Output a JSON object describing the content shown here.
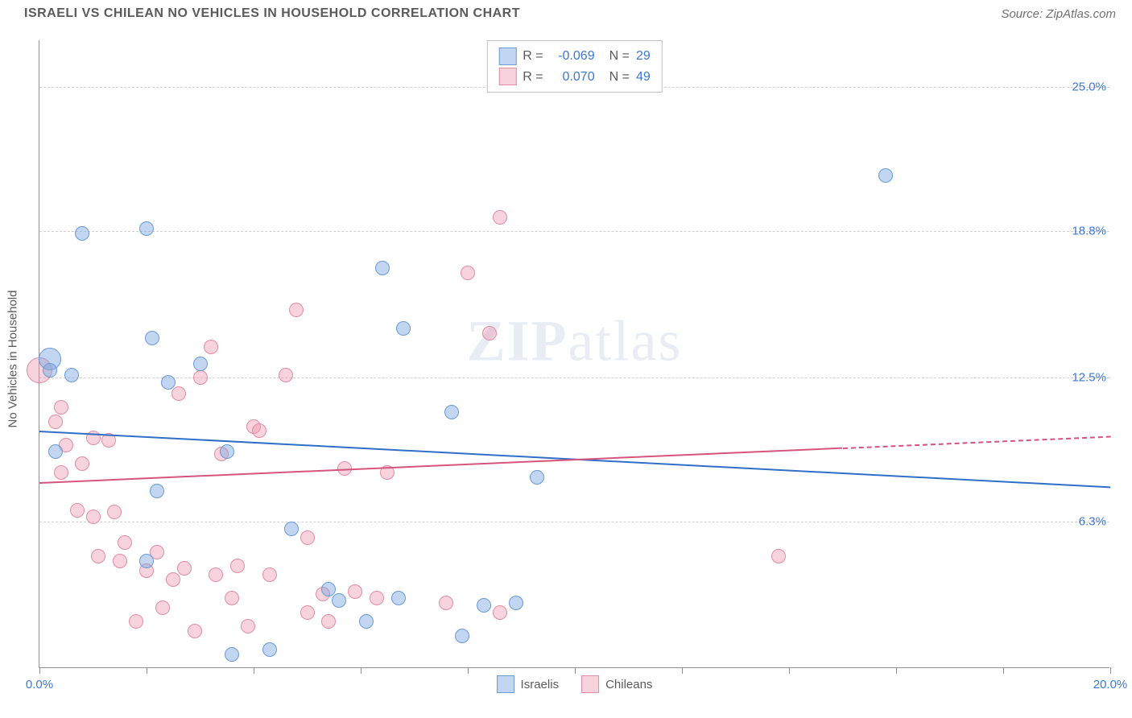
{
  "header": {
    "title": "ISRAELI VS CHILEAN NO VEHICLES IN HOUSEHOLD CORRELATION CHART",
    "source": "Source: ZipAtlas.com"
  },
  "chart": {
    "type": "scatter",
    "ylabel": "No Vehicles in Household",
    "watermark": "ZIPatlas",
    "background_color": "#ffffff",
    "grid_color": "#d0d0d0",
    "axis_color": "#909090",
    "text_color": "#5a5a5a",
    "value_color": "#3b78d8",
    "xlim": [
      0,
      20
    ],
    "ylim": [
      0,
      27
    ],
    "xticks": [
      0,
      2,
      4,
      6,
      8,
      10,
      12,
      14,
      16,
      18,
      20
    ],
    "xticks_labeled": [
      {
        "pos": 0,
        "label": "0.0%"
      },
      {
        "pos": 20,
        "label": "20.0%"
      }
    ],
    "yticks": [
      {
        "pos": 6.3,
        "label": "6.3%"
      },
      {
        "pos": 12.5,
        "label": "12.5%"
      },
      {
        "pos": 18.8,
        "label": "18.8%"
      },
      {
        "pos": 25.0,
        "label": "25.0%"
      }
    ],
    "series": [
      {
        "name": "Israelis",
        "fill_color": "rgba(120,165,225,0.45)",
        "stroke_color": "#6a9ad4",
        "line_color": "#2f6fc9",
        "R": "-0.069",
        "N": "29",
        "regression": {
          "x1": 0,
          "y1": 10.2,
          "x2": 20,
          "y2": 7.8,
          "dash_from_x": null
        },
        "points": [
          {
            "x": 0.2,
            "y": 13.3,
            "r": 14
          },
          {
            "x": 0.2,
            "y": 12.8,
            "r": 9
          },
          {
            "x": 0.8,
            "y": 18.7,
            "r": 9
          },
          {
            "x": 0.6,
            "y": 12.6,
            "r": 9
          },
          {
            "x": 0.3,
            "y": 9.3,
            "r": 9
          },
          {
            "x": 2.0,
            "y": 18.9,
            "r": 9
          },
          {
            "x": 2.1,
            "y": 14.2,
            "r": 9
          },
          {
            "x": 2.4,
            "y": 12.3,
            "r": 9
          },
          {
            "x": 2.2,
            "y": 7.6,
            "r": 9
          },
          {
            "x": 2.0,
            "y": 4.6,
            "r": 9
          },
          {
            "x": 3.0,
            "y": 13.1,
            "r": 9
          },
          {
            "x": 3.5,
            "y": 9.3,
            "r": 9
          },
          {
            "x": 3.6,
            "y": 0.6,
            "r": 9
          },
          {
            "x": 4.3,
            "y": 0.8,
            "r": 9
          },
          {
            "x": 4.7,
            "y": 6.0,
            "r": 9
          },
          {
            "x": 5.4,
            "y": 3.4,
            "r": 9
          },
          {
            "x": 5.6,
            "y": 2.9,
            "r": 9
          },
          {
            "x": 6.1,
            "y": 2.0,
            "r": 9
          },
          {
            "x": 6.4,
            "y": 17.2,
            "r": 9
          },
          {
            "x": 6.7,
            "y": 3.0,
            "r": 9
          },
          {
            "x": 6.8,
            "y": 14.6,
            "r": 9
          },
          {
            "x": 7.7,
            "y": 11.0,
            "r": 9
          },
          {
            "x": 7.9,
            "y": 1.4,
            "r": 9
          },
          {
            "x": 8.3,
            "y": 2.7,
            "r": 9
          },
          {
            "x": 8.9,
            "y": 2.8,
            "r": 9
          },
          {
            "x": 9.3,
            "y": 8.2,
            "r": 9
          },
          {
            "x": 15.8,
            "y": 21.2,
            "r": 9
          }
        ]
      },
      {
        "name": "Chileans",
        "fill_color": "rgba(235,145,170,0.40)",
        "stroke_color": "#e28ca4",
        "line_color": "#d6547c",
        "R": "0.070",
        "N": "49",
        "regression": {
          "x1": 0,
          "y1": 8.0,
          "x2": 20,
          "y2": 10.0,
          "dash_from_x": 15
        },
        "points": [
          {
            "x": 0.0,
            "y": 12.8,
            "r": 16
          },
          {
            "x": 0.3,
            "y": 10.6,
            "r": 9
          },
          {
            "x": 0.4,
            "y": 11.2,
            "r": 9
          },
          {
            "x": 0.4,
            "y": 8.4,
            "r": 9
          },
          {
            "x": 0.5,
            "y": 9.6,
            "r": 9
          },
          {
            "x": 0.7,
            "y": 6.8,
            "r": 9
          },
          {
            "x": 0.8,
            "y": 8.8,
            "r": 9
          },
          {
            "x": 1.0,
            "y": 9.9,
            "r": 9
          },
          {
            "x": 1.0,
            "y": 6.5,
            "r": 9
          },
          {
            "x": 1.1,
            "y": 4.8,
            "r": 9
          },
          {
            "x": 1.3,
            "y": 9.8,
            "r": 9
          },
          {
            "x": 1.4,
            "y": 6.7,
            "r": 9
          },
          {
            "x": 1.5,
            "y": 4.6,
            "r": 9
          },
          {
            "x": 1.6,
            "y": 5.4,
            "r": 9
          },
          {
            "x": 1.8,
            "y": 2.0,
            "r": 9
          },
          {
            "x": 2.0,
            "y": 4.2,
            "r": 9
          },
          {
            "x": 2.2,
            "y": 5.0,
            "r": 9
          },
          {
            "x": 2.3,
            "y": 2.6,
            "r": 9
          },
          {
            "x": 2.5,
            "y": 3.8,
            "r": 9
          },
          {
            "x": 2.6,
            "y": 11.8,
            "r": 9
          },
          {
            "x": 2.7,
            "y": 4.3,
            "r": 9
          },
          {
            "x": 2.9,
            "y": 1.6,
            "r": 9
          },
          {
            "x": 3.0,
            "y": 12.5,
            "r": 9
          },
          {
            "x": 3.2,
            "y": 13.8,
            "r": 9
          },
          {
            "x": 3.3,
            "y": 4.0,
            "r": 9
          },
          {
            "x": 3.4,
            "y": 9.2,
            "r": 9
          },
          {
            "x": 3.6,
            "y": 3.0,
            "r": 9
          },
          {
            "x": 3.7,
            "y": 4.4,
            "r": 9
          },
          {
            "x": 3.9,
            "y": 1.8,
            "r": 9
          },
          {
            "x": 4.0,
            "y": 10.4,
            "r": 9
          },
          {
            "x": 4.1,
            "y": 10.2,
            "r": 9
          },
          {
            "x": 4.3,
            "y": 4.0,
            "r": 9
          },
          {
            "x": 4.6,
            "y": 12.6,
            "r": 9
          },
          {
            "x": 4.8,
            "y": 15.4,
            "r": 9
          },
          {
            "x": 5.0,
            "y": 5.6,
            "r": 9
          },
          {
            "x": 5.0,
            "y": 2.4,
            "r": 9
          },
          {
            "x": 5.3,
            "y": 3.2,
            "r": 9
          },
          {
            "x": 5.4,
            "y": 2.0,
            "r": 9
          },
          {
            "x": 5.7,
            "y": 8.6,
            "r": 9
          },
          {
            "x": 5.9,
            "y": 3.3,
            "r": 9
          },
          {
            "x": 6.3,
            "y": 3.0,
            "r": 9
          },
          {
            "x": 6.5,
            "y": 8.4,
            "r": 9
          },
          {
            "x": 7.6,
            "y": 2.8,
            "r": 9
          },
          {
            "x": 8.0,
            "y": 17.0,
            "r": 9
          },
          {
            "x": 8.4,
            "y": 14.4,
            "r": 9
          },
          {
            "x": 8.6,
            "y": 19.4,
            "r": 9
          },
          {
            "x": 8.6,
            "y": 2.4,
            "r": 9
          },
          {
            "x": 13.8,
            "y": 4.8,
            "r": 9
          }
        ]
      }
    ]
  }
}
